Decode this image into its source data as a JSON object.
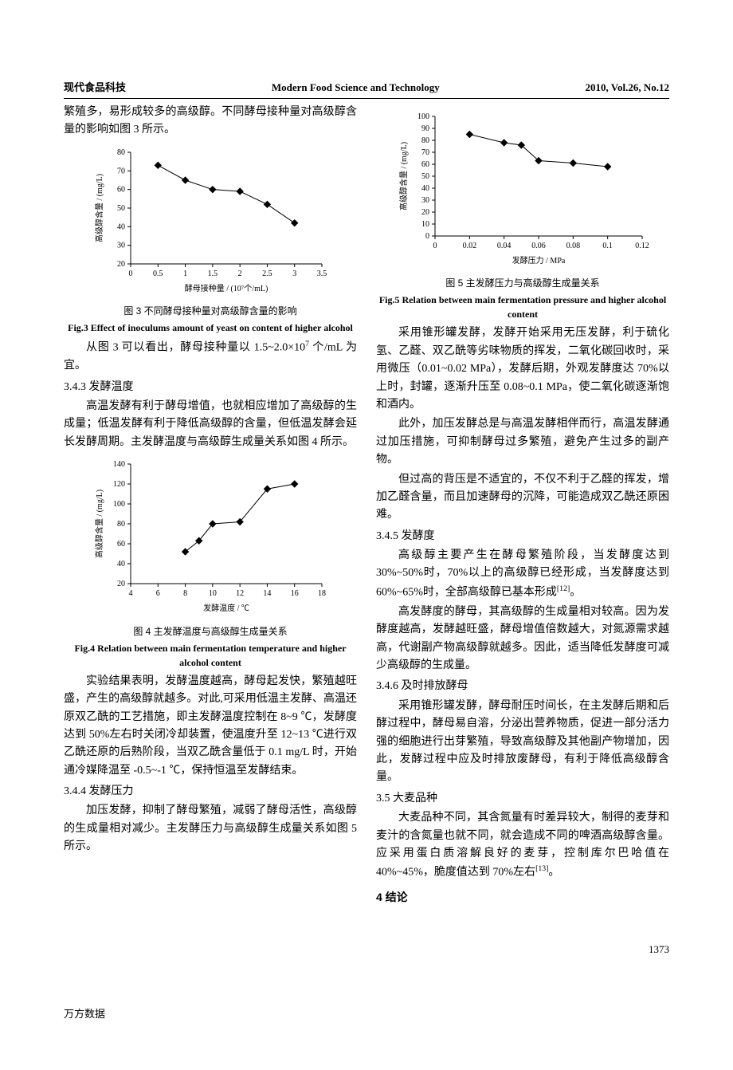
{
  "header": {
    "left": "现代食品科技",
    "center": "Modern Food Science and Technology",
    "right": "2010, Vol.26, No.12"
  },
  "left_col": {
    "intro_cont": "繁殖多，易形成较多的高级醇。不同酵母接种量对高级醇含量的影响如图 3 所示。",
    "fig3": {
      "type": "line",
      "x": [
        0.5,
        1.0,
        1.5,
        2.0,
        2.5,
        3.0
      ],
      "y": [
        73,
        65,
        60,
        59,
        52,
        42
      ],
      "xlim": [
        0,
        3.5
      ],
      "ylim": [
        20,
        80
      ],
      "xtick_step": 0.5,
      "ytick_step": 10,
      "xlabel": "酵母接种量 / (10⁷个/mL)",
      "ylabel": "高级醇含量 / (mg/L)",
      "line_color": "#000000",
      "marker": "diamond",
      "marker_fill": "#000000",
      "marker_size": 4,
      "line_width": 1,
      "bg": "#ffffff",
      "tick_fontsize": 10,
      "label_fontsize": 10,
      "caption_cn": "图 3  不同酵母接种量对高级醇含量的影响",
      "caption_en": "Fig.3 Effect of inoculums amount of yeast on content of higher alcohol"
    },
    "p_after_fig3_a": "从图 3 可以看出，酵母接种量以 1.5~2.0×10⁷ 个/mL 为宜。",
    "sec343_head": "3.4.3  发酵温度",
    "sec343_body": "高温发酵有利于酵母增值，也就相应增加了高级醇的生成量；低温发酵有利于降低高级醇的含量，但低温发酵会延长发酵周期。主发酵温度与高级醇生成量关系如图 4 所示。",
    "fig4": {
      "type": "line",
      "x": [
        8,
        9,
        10,
        12,
        14,
        16
      ],
      "y": [
        52,
        63,
        80,
        82,
        115,
        120
      ],
      "xlim": [
        4,
        18
      ],
      "ylim": [
        20,
        140
      ],
      "xtick_step": 2,
      "ytick_step": 20,
      "xlabel": "发酵温度 / ℃",
      "ylabel": "高级醇含量 / (mg/L)",
      "line_color": "#000000",
      "marker": "diamond",
      "marker_fill": "#000000",
      "marker_size": 4,
      "line_width": 1,
      "bg": "#ffffff",
      "tick_fontsize": 10,
      "label_fontsize": 10,
      "caption_cn": "图 4  主发酵温度与高级醇生成量关系",
      "caption_en": "Fig.4 Relation between main fermentation temperature and higher alcohol content"
    },
    "sec343_body2": "实验结果表明，发酵温度越高，酵母起发快，繁殖越旺盛，产生的高级醇就越多。对此,可采用低温主发酵、高温还原双乙酰的工艺措施，即主发酵温度控制在 8~9 ℃，发酵度达到 50%左右时关闭冷却装置，使温度升至 12~13 ℃进行双乙酰还原的后熟阶段，当双乙酰含量低于 0.1 mg/L 时，开始通冷媒降温至 -0.5~-1 ℃，保持恒温至发酵结束。",
    "sec344_head": "3.4.4  发酵压力",
    "sec344_body": "加压发酵，抑制了酵母繁殖，减弱了酵母活性，高级醇的生成量相对减少。主发酵压力与高级醇生成量关系如图 5 所示。"
  },
  "right_col": {
    "fig5": {
      "type": "line",
      "x": [
        0.02,
        0.04,
        0.05,
        0.06,
        0.08,
        0.1
      ],
      "y": [
        85,
        78,
        76,
        63,
        61,
        58
      ],
      "xlim": [
        0,
        0.12
      ],
      "ylim": [
        0,
        100
      ],
      "xtick_step": 0.02,
      "ytick_step": 10,
      "xlabel": "发酵压力 / MPa",
      "ylabel": "高级醇含量 / (mg/L)",
      "line_color": "#000000",
      "marker": "diamond",
      "marker_fill": "#000000",
      "marker_size": 4,
      "line_width": 1,
      "bg": "#ffffff",
      "tick_fontsize": 10,
      "label_fontsize": 10,
      "caption_cn": "图 5  主发酵压力与高级醇生成量关系",
      "caption_en": "Fig.5 Relation between main fermentation pressure and higher alcohol content"
    },
    "p1": "采用锥形罐发酵，发酵开始采用无压发酵，利于硫化氢、乙醛、双乙酰等劣味物质的挥发，二氧化碳回收时，采用微压（0.01~0.02 MPa），发酵后期，外观发酵度达 70%以上时，封罐，逐渐升压至 0.08~0.1 MPa，使二氧化碳逐渐饱和酒内。",
    "p2": "此外，加压发酵总是与高温发酵相伴而行，高温发酵通过加压措施，可抑制酵母过多繁殖，避免产生过多的副产物。",
    "p3": "但过高的背压是不适宜的，不仅不利于乙醛的挥发，增加乙醛含量，而且加速酵母的沉降，可能造成双乙酰还原困难。",
    "sec345_head": "3.4.5  发酵度",
    "sec345_p1": "高级醇主要产生在酵母繁殖阶段，当发酵度达到30%~50%时，70%以上的高级醇已经形成，当发酵度达到 60%~65%时，全部高级醇已基本形成[12]。",
    "sec345_p2": "高发酵度的酵母，其高级醇的生成量相对较高。因为发酵度越高，发酵越旺盛，酵母增值倍数越大，对氮源需求越高，代谢副产物高级醇就越多。因此，适当降低发酵度可减少高级醇的生成量。",
    "sec346_head": "3.4.6  及时排放酵母",
    "sec346_p": "采用锥形罐发酵，酵母耐压时间长，在主发酵后期和后酵过程中，酵母易自溶，分泌出营养物质，促进一部分活力强的细胞进行出芽繁殖，导致高级醇及其他副产物增加，因此，发酵过程中应及时排放废酵母，有利于降低高级醇含量。",
    "sec35_head": "3.5  大麦品种",
    "sec35_p": "大麦品种不同，其含氮量有时差异较大，制得的麦芽和麦汁的含氮量也就不同，就会造成不同的啤酒高级醇含量。应采用蛋白质溶解良好的麦芽，控制库尔巴哈值在 40%~45%，脆度值达到 70%左右[13]。",
    "sec4_head": "4  结论"
  },
  "footer": {
    "pagenum": "1373",
    "db": "万方数据"
  }
}
